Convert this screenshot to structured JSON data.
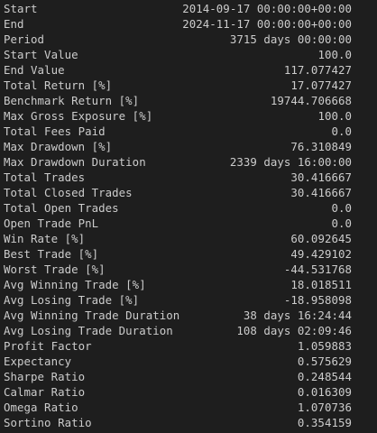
{
  "stats": [
    {
      "key": "Start",
      "value": "2014-09-17 00:00:00+00:00"
    },
    {
      "key": "End",
      "value": "2024-11-17 00:00:00+00:00"
    },
    {
      "key": "Period",
      "value": "3715 days 00:00:00"
    },
    {
      "key": "Start Value",
      "value": "100.0"
    },
    {
      "key": "End Value",
      "value": "117.077427"
    },
    {
      "key": "Total Return [%]",
      "value": "17.077427"
    },
    {
      "key": "Benchmark Return [%]",
      "value": "19744.706668"
    },
    {
      "key": "Max Gross Exposure [%]",
      "value": "100.0"
    },
    {
      "key": "Total Fees Paid",
      "value": "0.0"
    },
    {
      "key": "Max Drawdown [%]",
      "value": "76.310849"
    },
    {
      "key": "Max Drawdown Duration",
      "value": "2339 days 16:00:00"
    },
    {
      "key": "Total Trades",
      "value": "30.416667"
    },
    {
      "key": "Total Closed Trades",
      "value": "30.416667"
    },
    {
      "key": "Total Open Trades",
      "value": "0.0"
    },
    {
      "key": "Open Trade PnL",
      "value": "0.0"
    },
    {
      "key": "Win Rate [%]",
      "value": "60.092645"
    },
    {
      "key": "Best Trade [%]",
      "value": "49.429102"
    },
    {
      "key": "Worst Trade [%]",
      "value": "-44.531768"
    },
    {
      "key": "Avg Winning Trade [%]",
      "value": "18.018511"
    },
    {
      "key": "Avg Losing Trade [%]",
      "value": "-18.958098"
    },
    {
      "key": "Avg Winning Trade Duration",
      "value": "38 days 16:24:44"
    },
    {
      "key": "Avg Losing Trade Duration",
      "value": "108 days 02:09:46"
    },
    {
      "key": "Profit Factor",
      "value": "1.059883"
    },
    {
      "key": "Expectancy",
      "value": "0.575629"
    },
    {
      "key": "Sharpe Ratio",
      "value": "0.248544"
    },
    {
      "key": "Calmar Ratio",
      "value": "0.016309"
    },
    {
      "key": "Omega Ratio",
      "value": "1.070736"
    },
    {
      "key": "Sortino Ratio",
      "value": "0.354159"
    }
  ]
}
